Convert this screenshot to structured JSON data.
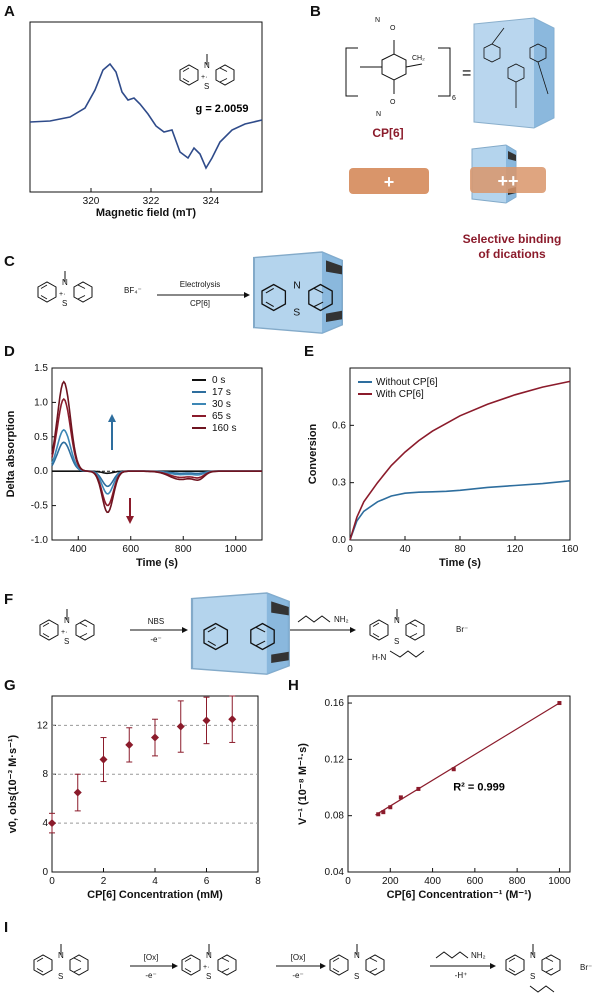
{
  "panels": {
    "A": {
      "label": "A",
      "xlabel": "Magnetic field (mT)",
      "xticks": [
        "320",
        "322",
        "324"
      ],
      "g_value": "g = 2.0059",
      "radical_mark": "+·"
    },
    "B": {
      "label": "B",
      "cp_name": "CP[6]",
      "subscript": "6",
      "ch2": "CH₂",
      "equals": "=",
      "mono_plus": "+",
      "di_plus": "++",
      "caption_line1": "Selective binding",
      "caption_line2": "of dications"
    },
    "C": {
      "label": "C",
      "counterion": "BF₄⁻",
      "arrow_top": "Electrolysis",
      "arrow_bottom": "CP[6]"
    },
    "D": {
      "label": "D"
    },
    "E": {
      "label": "E"
    },
    "F": {
      "label": "F",
      "reagent_top": "NBS",
      "reagent_bottom": "-e⁻",
      "amine": "NH₂",
      "bromide": "Br⁻",
      "nh": "H-N"
    },
    "G": {
      "label": "G"
    },
    "H": {
      "label": "H",
      "r2": "R² = 0.999"
    },
    "I": {
      "label": "I",
      "ox1_top": "[Ox]",
      "ox1_bottom": "-e⁻",
      "ox2_top": "[Ox]",
      "ox2_bottom": "-e⁻",
      "amine": "NH₂",
      "step3_bottom": "-H⁺",
      "bromide": "Br⁻"
    }
  },
  "colors": {
    "navy": "#2f4b8a",
    "maroon": "#8b1b2b",
    "steel": "#2e6e9e",
    "cage": "#a8cdea",
    "cation": "#d9956a"
  },
  "chart_data": [
    {
      "id": "D",
      "type": "line",
      "xlabel": "Time (s)",
      "ylabel": "Delta absorption",
      "xlim": [
        300,
        1100
      ],
      "ylim": [
        -1.0,
        1.5
      ],
      "xticks": [
        400,
        600,
        800,
        1000
      ],
      "yticks": [
        -1.0,
        -0.5,
        0.0,
        0.5,
        1.0,
        1.5
      ],
      "legend": "top-right",
      "series": [
        {
          "name": "0 s",
          "color": "#111111",
          "peak": 0.0,
          "trough": -0.03,
          "tail": 0.0
        },
        {
          "name": "17 s",
          "color": "#2e6e9e",
          "peak": 0.42,
          "trough": -0.22,
          "tail": -0.03
        },
        {
          "name": "30 s",
          "color": "#3d87b5",
          "peak": 0.6,
          "trough": -0.33,
          "tail": -0.05
        },
        {
          "name": "65 s",
          "color": "#8b1b2b",
          "peak": 1.05,
          "trough": -0.5,
          "tail": -0.09
        },
        {
          "name": "160 s",
          "color": "#6e1420",
          "peak": 1.3,
          "trough": -0.6,
          "tail": -0.12
        }
      ]
    },
    {
      "id": "E",
      "type": "line",
      "xlabel": "Time (s)",
      "ylabel": "Conversion",
      "xlim": [
        0,
        160
      ],
      "ylim": [
        0,
        0.9
      ],
      "xticks": [
        0,
        40,
        80,
        120,
        160
      ],
      "yticks": [
        0.0,
        0.3,
        0.6
      ],
      "legend": "top-left",
      "series": [
        {
          "name": "Without CP[6]",
          "color": "#2e6e9e",
          "x": [
            0,
            5,
            10,
            20,
            30,
            40,
            50,
            60,
            70,
            80,
            100,
            120,
            140,
            160
          ],
          "y": [
            0,
            0.1,
            0.15,
            0.2,
            0.23,
            0.245,
            0.25,
            0.252,
            0.255,
            0.26,
            0.275,
            0.285,
            0.295,
            0.31
          ]
        },
        {
          "name": "With CP[6]",
          "color": "#8b1b2b",
          "x": [
            0,
            5,
            10,
            20,
            30,
            40,
            50,
            60,
            70,
            80,
            100,
            120,
            140,
            160
          ],
          "y": [
            0,
            0.12,
            0.2,
            0.3,
            0.39,
            0.46,
            0.52,
            0.57,
            0.61,
            0.65,
            0.71,
            0.76,
            0.8,
            0.83
          ]
        }
      ]
    },
    {
      "id": "G",
      "type": "scatter",
      "xlabel": "CP[6] Concentration (mM)",
      "ylabel": "v0, obs(10⁻³ M·s⁻¹)",
      "xlim": [
        0,
        8
      ],
      "ylim": [
        0,
        14.4
      ],
      "xticks": [
        0,
        2,
        4,
        6,
        8
      ],
      "yticks": [
        0,
        4,
        8,
        12
      ],
      "x": [
        0,
        1,
        2,
        3,
        4,
        5,
        6,
        7
      ],
      "y": [
        4.0,
        6.5,
        9.2,
        10.4,
        11.0,
        11.9,
        12.4,
        12.5
      ],
      "err": [
        0.8,
        1.5,
        1.8,
        1.4,
        1.5,
        2.1,
        1.9,
        1.9
      ]
    },
    {
      "id": "H",
      "type": "scatter",
      "xlabel": "CP[6] Concentration⁻¹ (M⁻¹)",
      "ylabel": "V⁻¹ (10⁻⁸ M⁻¹·s)",
      "xlim": [
        0,
        1050
      ],
      "ylim": [
        0.04,
        0.165
      ],
      "xticks": [
        0,
        200,
        400,
        600,
        800,
        1000
      ],
      "yticks": [
        0.04,
        0.08,
        0.12,
        0.16
      ],
      "x": [
        143,
        167,
        200,
        250,
        333,
        500,
        1000
      ],
      "y": [
        0.081,
        0.0825,
        0.086,
        0.093,
        0.099,
        0.113,
        0.16
      ],
      "fit": {
        "x": [
          130,
          1000
        ],
        "y": [
          0.0805,
          0.16
        ]
      }
    }
  ]
}
